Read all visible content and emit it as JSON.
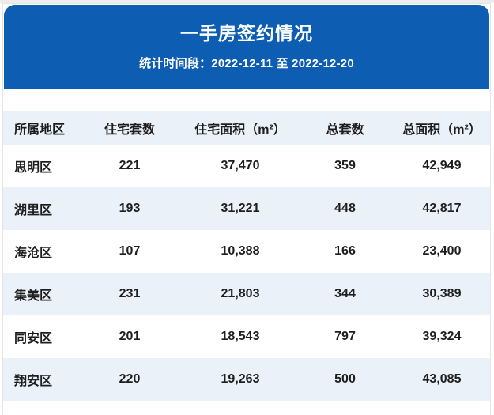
{
  "chart_data": {
    "type": "table",
    "title": "一手房签约情况",
    "subtitle": "统计时间段：2022-12-11 至 2022-12-20",
    "columns": [
      "所属地区",
      "住宅套数",
      "住宅面积（m²）",
      "总套数",
      "总面积（m²）"
    ],
    "rows": [
      [
        "思明区",
        "221",
        "37,470",
        "359",
        "42,949"
      ],
      [
        "湖里区",
        "193",
        "31,221",
        "448",
        "42,817"
      ],
      [
        "海沧区",
        "107",
        "10,388",
        "166",
        "23,400"
      ],
      [
        "集美区",
        "231",
        "21,803",
        "344",
        "30,389"
      ],
      [
        "同安区",
        "201",
        "18,543",
        "797",
        "39,324"
      ],
      [
        "翔安区",
        "220",
        "19,263",
        "500",
        "43,085"
      ]
    ]
  },
  "colors": {
    "banner_blue": "#0D5EB2",
    "row_alt": "#EAF1F9",
    "text": "#1E1E1E"
  }
}
